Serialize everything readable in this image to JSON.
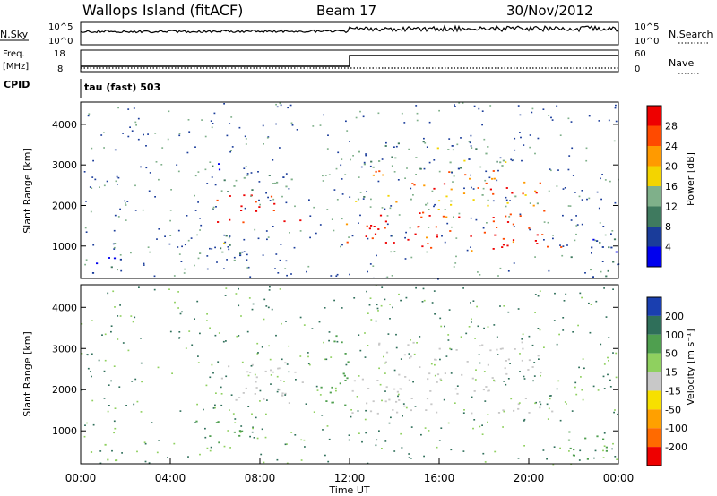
{
  "header": {
    "station": "Wallops Island (fitACF)",
    "beam": "Beam 17",
    "date": "30/Nov/2012"
  },
  "summary": {
    "nsky_label": "N.Sky",
    "nsearch_label": "N.Search",
    "nsky_ticks": [
      "10^5",
      "10^0"
    ],
    "nsearch_ticks": [
      "10^5",
      "10^0"
    ],
    "freq_label": "Freq.",
    "freq_unit": "[MHz]",
    "freq_ticks": [
      "18",
      "8"
    ],
    "nave_label": "Nave",
    "nave_ticks": [
      "60",
      "0"
    ],
    "cpid_label": "CPID",
    "cpid_text": "tau (fast) 503",
    "freq_step_time_hours": 12.0,
    "freq_before_mhz": 10.5,
    "freq_after_mhz": 15.5
  },
  "colors": {
    "power_scale": [
      "#0000ee",
      "#1a3c9a",
      "#3f7a5f",
      "#7fb08a",
      "#f3d400",
      "#ff9a00",
      "#ff4a00",
      "#ee0000"
    ],
    "velocity_scale": [
      "#1a3fb0",
      "#2f6f5a",
      "#4f9f4f",
      "#8fd05f",
      "#c8c8c8",
      "#f7e000",
      "#ffa000",
      "#ff6a00",
      "#ee0000"
    ]
  },
  "chart_data": [
    {
      "type": "heatmap",
      "name": "power",
      "ylabel": "Slant Range [km]",
      "ylim": [
        200,
        4550
      ],
      "yticks": [
        "1000",
        "2000",
        "3000",
        "4000"
      ],
      "colorbar_label": "Power [dB]",
      "colorbar_ticks": [
        "4",
        "8",
        "12",
        "16",
        "20",
        "24",
        "28"
      ],
      "colorbar_range": [
        0,
        32
      ],
      "regions": [
        {
          "t0": 6.0,
          "t1": 9.9,
          "r0": 1600,
          "r1": 2300,
          "level": 28
        },
        {
          "t0": 5.8,
          "t1": 9.9,
          "r0": 2300,
          "r1": 2800,
          "level": 12
        },
        {
          "t0": 5.6,
          "t1": 6.5,
          "r0": 2600,
          "r1": 3100,
          "level": 6
        },
        {
          "t0": 11.8,
          "t1": 21.5,
          "r0": 900,
          "r1": 1900,
          "level": 28
        },
        {
          "t0": 12.0,
          "t1": 21.5,
          "r0": 1900,
          "r1": 2300,
          "level": 16
        },
        {
          "t0": 13.0,
          "t1": 20.5,
          "r0": 2300,
          "r1": 2900,
          "level": 26
        },
        {
          "t0": 12.0,
          "t1": 19.0,
          "r0": 2900,
          "r1": 3600,
          "level": 12
        },
        {
          "t0": 21.3,
          "t1": 23.9,
          "r0": 250,
          "r1": 1200,
          "level": 8
        },
        {
          "t0": 0.2,
          "t1": 2.0,
          "r0": 250,
          "r1": 800,
          "level": 6
        },
        {
          "t0": 5.0,
          "t1": 7.2,
          "r0": 650,
          "r1": 1300,
          "level": 12
        }
      ]
    },
    {
      "type": "heatmap",
      "name": "velocity",
      "ylabel": "Slant Range [km]",
      "xlabel": "Time UT",
      "ylim": [
        200,
        4550
      ],
      "yticks": [
        "1000",
        "2000",
        "3000",
        "4000"
      ],
      "xticks": [
        "00:00",
        "04:00",
        "08:00",
        "12:00",
        "16:00",
        "20:00",
        "00:00"
      ],
      "xlim_hours": [
        0,
        24
      ],
      "colorbar_label": "Velocity [m s⁻¹]",
      "colorbar_ticks": [
        "200",
        "100",
        "50",
        "15",
        "-15",
        "-50",
        "-100",
        "-200"
      ],
      "regions": [
        {
          "t0": 6.0,
          "t1": 9.9,
          "r0": 1600,
          "r1": 2800,
          "level": -5
        },
        {
          "t0": 12.0,
          "t1": 21.5,
          "r0": 1400,
          "r1": 2300,
          "level": -5
        },
        {
          "t0": 13.0,
          "t1": 20.5,
          "r0": 2300,
          "r1": 3200,
          "level": -5
        },
        {
          "t0": 10.5,
          "t1": 12.0,
          "r0": 1600,
          "r1": 3400,
          "level": 40
        },
        {
          "t0": 5.0,
          "t1": 7.2,
          "r0": 650,
          "r1": 1300,
          "level": 40
        },
        {
          "t0": 21.3,
          "t1": 23.9,
          "r0": 250,
          "r1": 1000,
          "level": 40
        },
        {
          "t0": 0.2,
          "t1": 2.0,
          "r0": 250,
          "r1": 700,
          "level": 30
        }
      ]
    }
  ]
}
